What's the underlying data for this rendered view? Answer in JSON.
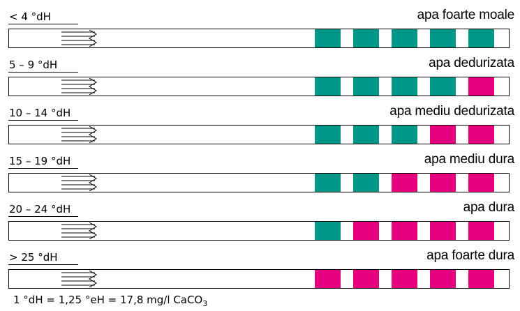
{
  "colors": {
    "teal": "#009688",
    "magenta": "#e6007e"
  },
  "rows": [
    {
      "range": "< 4 °dH",
      "label": "apa foarte moale",
      "pads": [
        "teal",
        "teal",
        "teal",
        "teal",
        "teal"
      ]
    },
    {
      "range": "5 – 9 °dH",
      "label": "apa dedurizata",
      "pads": [
        "teal",
        "teal",
        "teal",
        "teal",
        "magenta"
      ]
    },
    {
      "range": "10 – 14 °dH",
      "label": "apa mediu dedurizata",
      "pads": [
        "teal",
        "teal",
        "teal",
        "magenta",
        "magenta"
      ]
    },
    {
      "range": "15 – 19 °dH",
      "label": "apa mediu dura",
      "pads": [
        "teal",
        "teal",
        "magenta",
        "magenta",
        "magenta"
      ]
    },
    {
      "range": "20 – 24 °dH",
      "label": "apa dura",
      "pads": [
        "teal",
        "magenta",
        "magenta",
        "magenta",
        "magenta"
      ]
    },
    {
      "range": "> 25 °dH",
      "label": "apa foarte dura",
      "pads": [
        "magenta",
        "magenta",
        "magenta",
        "magenta",
        "magenta"
      ]
    }
  ],
  "footer": {
    "text": "1 °dH = 1,25 °eH = 17,8 mg/l CaCO",
    "subscript": "3"
  }
}
